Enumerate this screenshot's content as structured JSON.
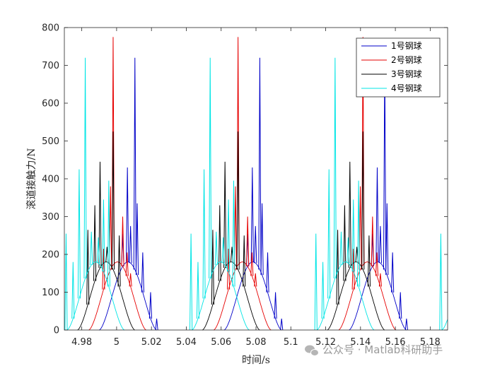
{
  "chart_data": {
    "type": "line",
    "xlabel": "时间/s",
    "ylabel": "滚道接触力/N",
    "xlim": [
      4.97,
      5.19
    ],
    "ylim": [
      0,
      800
    ],
    "x_ticks": [
      4.98,
      5.0,
      5.02,
      5.04,
      5.06,
      5.08,
      5.1,
      5.12,
      5.14,
      5.16,
      5.18
    ],
    "x_tick_labels": [
      "4.98",
      "5",
      "5.02",
      "5.04",
      "5.06",
      "5.08",
      "5.1",
      "5.12",
      "5.14",
      "5.16",
      "5.18"
    ],
    "y_ticks": [
      0,
      100,
      200,
      300,
      400,
      500,
      600,
      700,
      800
    ],
    "y_tick_labels": [
      "0",
      "100",
      "200",
      "300",
      "400",
      "500",
      "600",
      "700",
      "800"
    ],
    "grid": false,
    "legend_position": "top-right",
    "period": 0.0717,
    "series": [
      {
        "name": "1号钢球",
        "color": "#0000c8",
        "hump": {
          "center": 5.0065,
          "half_width": 0.0165,
          "peak": 180
        },
        "spikes": [
          {
            "x": 5.0035,
            "y": 255
          },
          {
            "x": 5.0062,
            "y": 430
          },
          {
            "x": 5.008,
            "y": 275
          },
          {
            "x": 5.0105,
            "y": 720
          },
          {
            "x": 5.0118,
            "y": 335
          },
          {
            "x": 5.015,
            "y": 205
          },
          {
            "x": 5.0195,
            "y": 100
          },
          {
            "x": 5.023,
            "y": 30
          }
        ]
      },
      {
        "name": "2号钢球",
        "color": "#e60000",
        "hump": {
          "center": 5.0005,
          "half_width": 0.0165,
          "peak": 180
        },
        "spikes": [
          {
            "x": 4.9925,
            "y": 215
          },
          {
            "x": 4.9965,
            "y": 380
          },
          {
            "x": 4.998,
            "y": 775
          },
          {
            "x": 5.0035,
            "y": 300
          },
          {
            "x": 5.006,
            "y": 205
          },
          {
            "x": 5.008,
            "y": 150
          }
        ]
      },
      {
        "name": "3号钢球",
        "color": "#000000",
        "hump": {
          "center": 4.994,
          "half_width": 0.0165,
          "peak": 180
        },
        "spikes": [
          {
            "x": 4.9835,
            "y": 265
          },
          {
            "x": 4.9875,
            "y": 330
          },
          {
            "x": 4.9905,
            "y": 445
          },
          {
            "x": 4.9945,
            "y": 220
          },
          {
            "x": 4.998,
            "y": 525
          },
          {
            "x": 5.0015,
            "y": 250
          }
        ]
      },
      {
        "name": "4号钢球",
        "color": "#00e5e5",
        "hump": {
          "center": 4.988,
          "half_width": 0.0165,
          "peak": 180
        },
        "spikes": [
          {
            "x": 4.971,
            "y": 255
          },
          {
            "x": 4.975,
            "y": 180
          },
          {
            "x": 4.9785,
            "y": 425
          },
          {
            "x": 4.982,
            "y": 720
          },
          {
            "x": 4.9855,
            "y": 260
          },
          {
            "x": 4.9895,
            "y": 245
          },
          {
            "x": 4.9925,
            "y": 345
          },
          {
            "x": 4.9955,
            "y": 395
          }
        ]
      }
    ]
  },
  "watermark": {
    "icon": "wechat-icon",
    "text": "公众号 · Matlab科研助手"
  }
}
